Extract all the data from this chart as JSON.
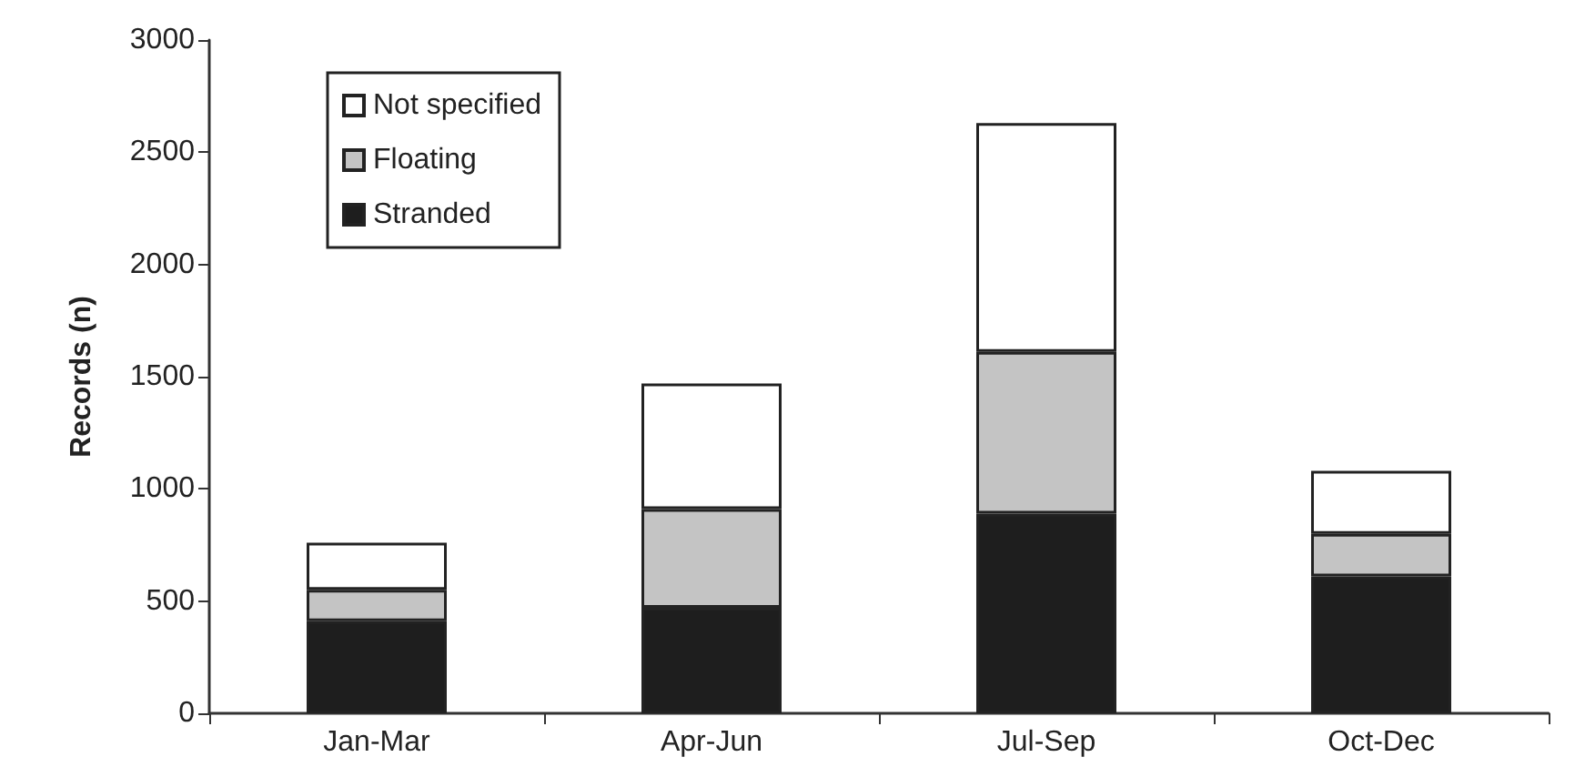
{
  "chart_data": {
    "type": "bar",
    "ylabel": "Records (n)",
    "categories": [
      "Jan-Mar",
      "Apr-Jun",
      "Jul-Sep",
      "Oct-Dec"
    ],
    "stacked": true,
    "series": [
      {
        "name": "Stranded",
        "color": "#1e1e1e",
        "values": [
          410,
          470,
          890,
          610
        ]
      },
      {
        "name": "Floating",
        "color": "#c4c4c4",
        "values": [
          140,
          440,
          720,
          190
        ]
      },
      {
        "name": "Not specified",
        "color": "#ffffff",
        "values": [
          210,
          560,
          1020,
          280
        ]
      }
    ],
    "ylim": [
      0,
      3000
    ],
    "yticks": [
      0,
      500,
      1000,
      1500,
      2000,
      2500,
      3000
    ],
    "grid": false,
    "legend": "top left"
  }
}
